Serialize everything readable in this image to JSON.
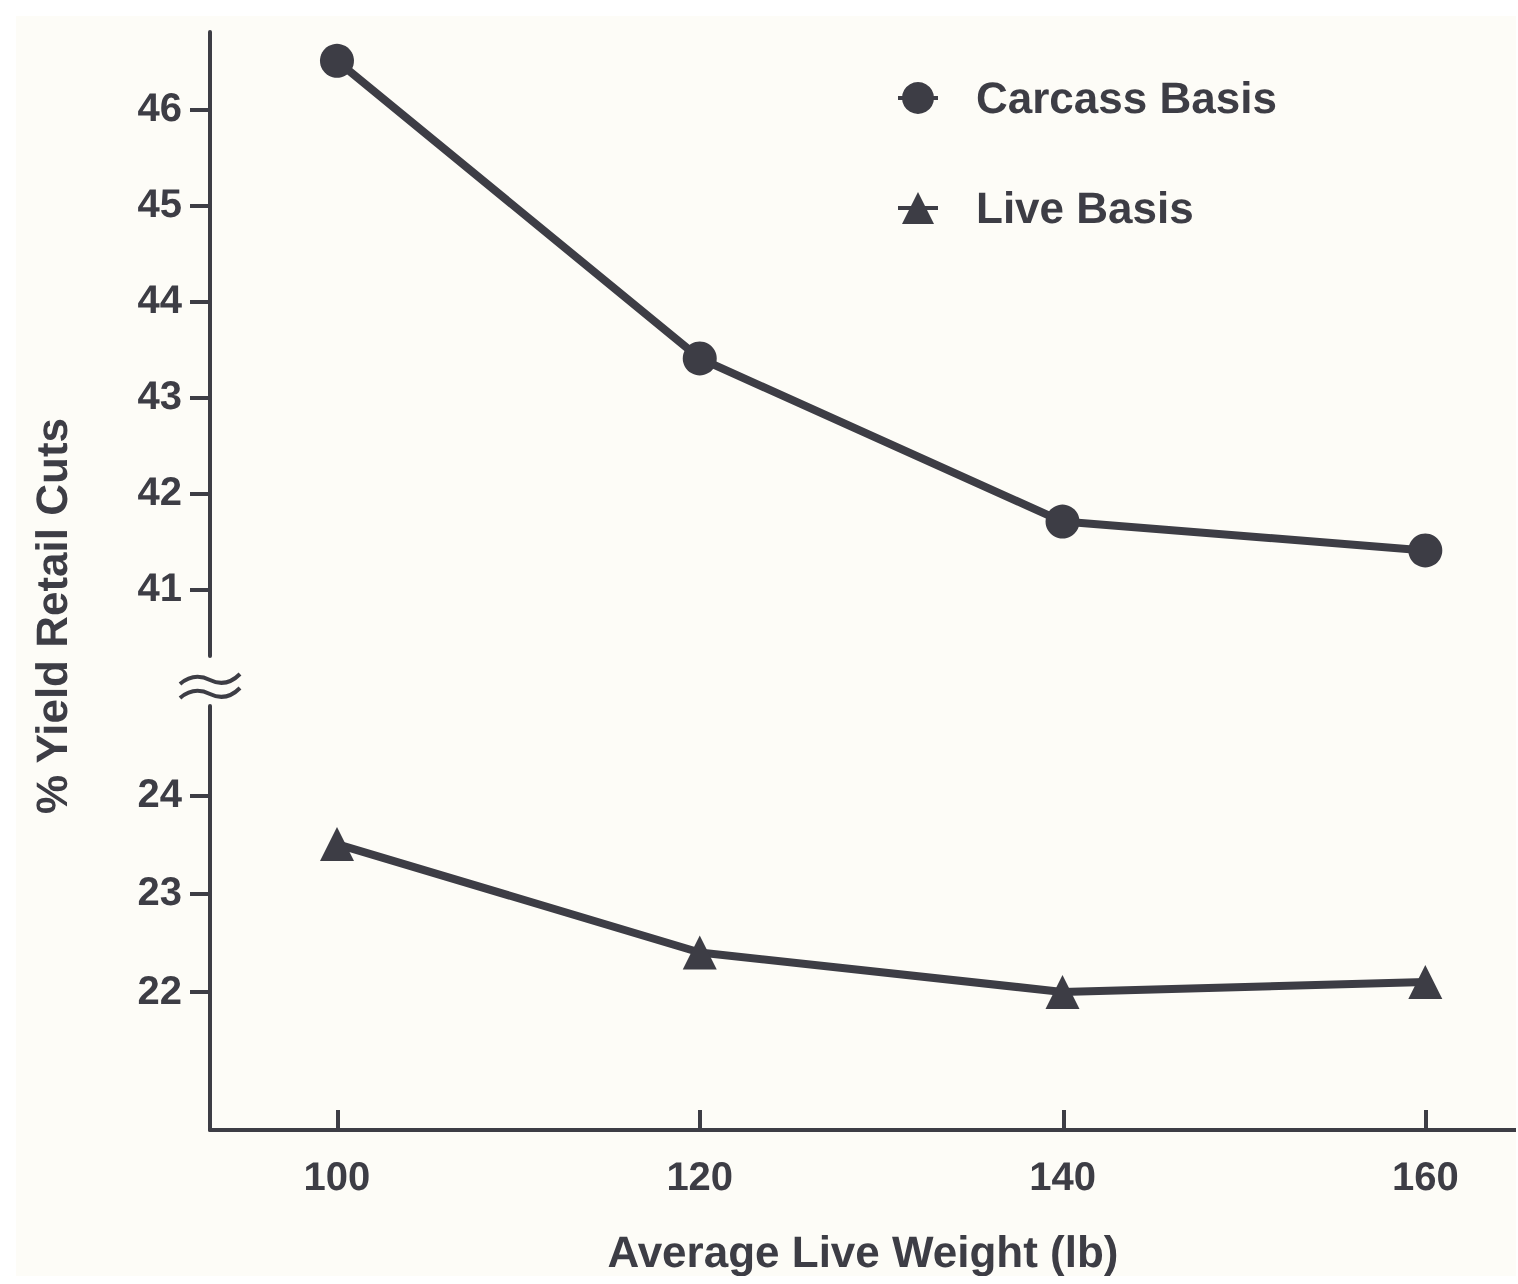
{
  "chart_data": [
    {
      "type": "line",
      "ylabel": "% Yield Retail Cuts",
      "x": [
        100,
        120,
        140,
        160
      ],
      "xlim": [
        93,
        165
      ],
      "xticks": [
        100,
        120,
        140,
        160
      ],
      "ylim": [
        40.3,
        46.8
      ],
      "yticks": [
        41,
        42,
        43,
        44,
        45,
        46
      ],
      "tick_labels": "y",
      "legend": "top right",
      "marker": "circle",
      "grid": false,
      "series": [
        {
          "name": "Carcass Basis",
          "color": "#3d3d45",
          "values": [
            46.5,
            43.4,
            41.7,
            41.4
          ]
        }
      ]
    },
    {
      "type": "line",
      "xlabel": "Average Live Weight (lb)",
      "x": [
        100,
        120,
        140,
        160
      ],
      "xlim": [
        93,
        165
      ],
      "xticks": [
        100,
        120,
        140,
        160
      ],
      "ylim": [
        20.6,
        24.9
      ],
      "yticks": [
        22,
        23,
        24
      ],
      "legend": "top right",
      "marker": "triangle",
      "grid": false,
      "series": [
        {
          "name": "Live Basis",
          "color": "#3d3d45",
          "values": [
            23.5,
            22.4,
            22.0,
            22.1
          ]
        }
      ]
    }
  ]
}
